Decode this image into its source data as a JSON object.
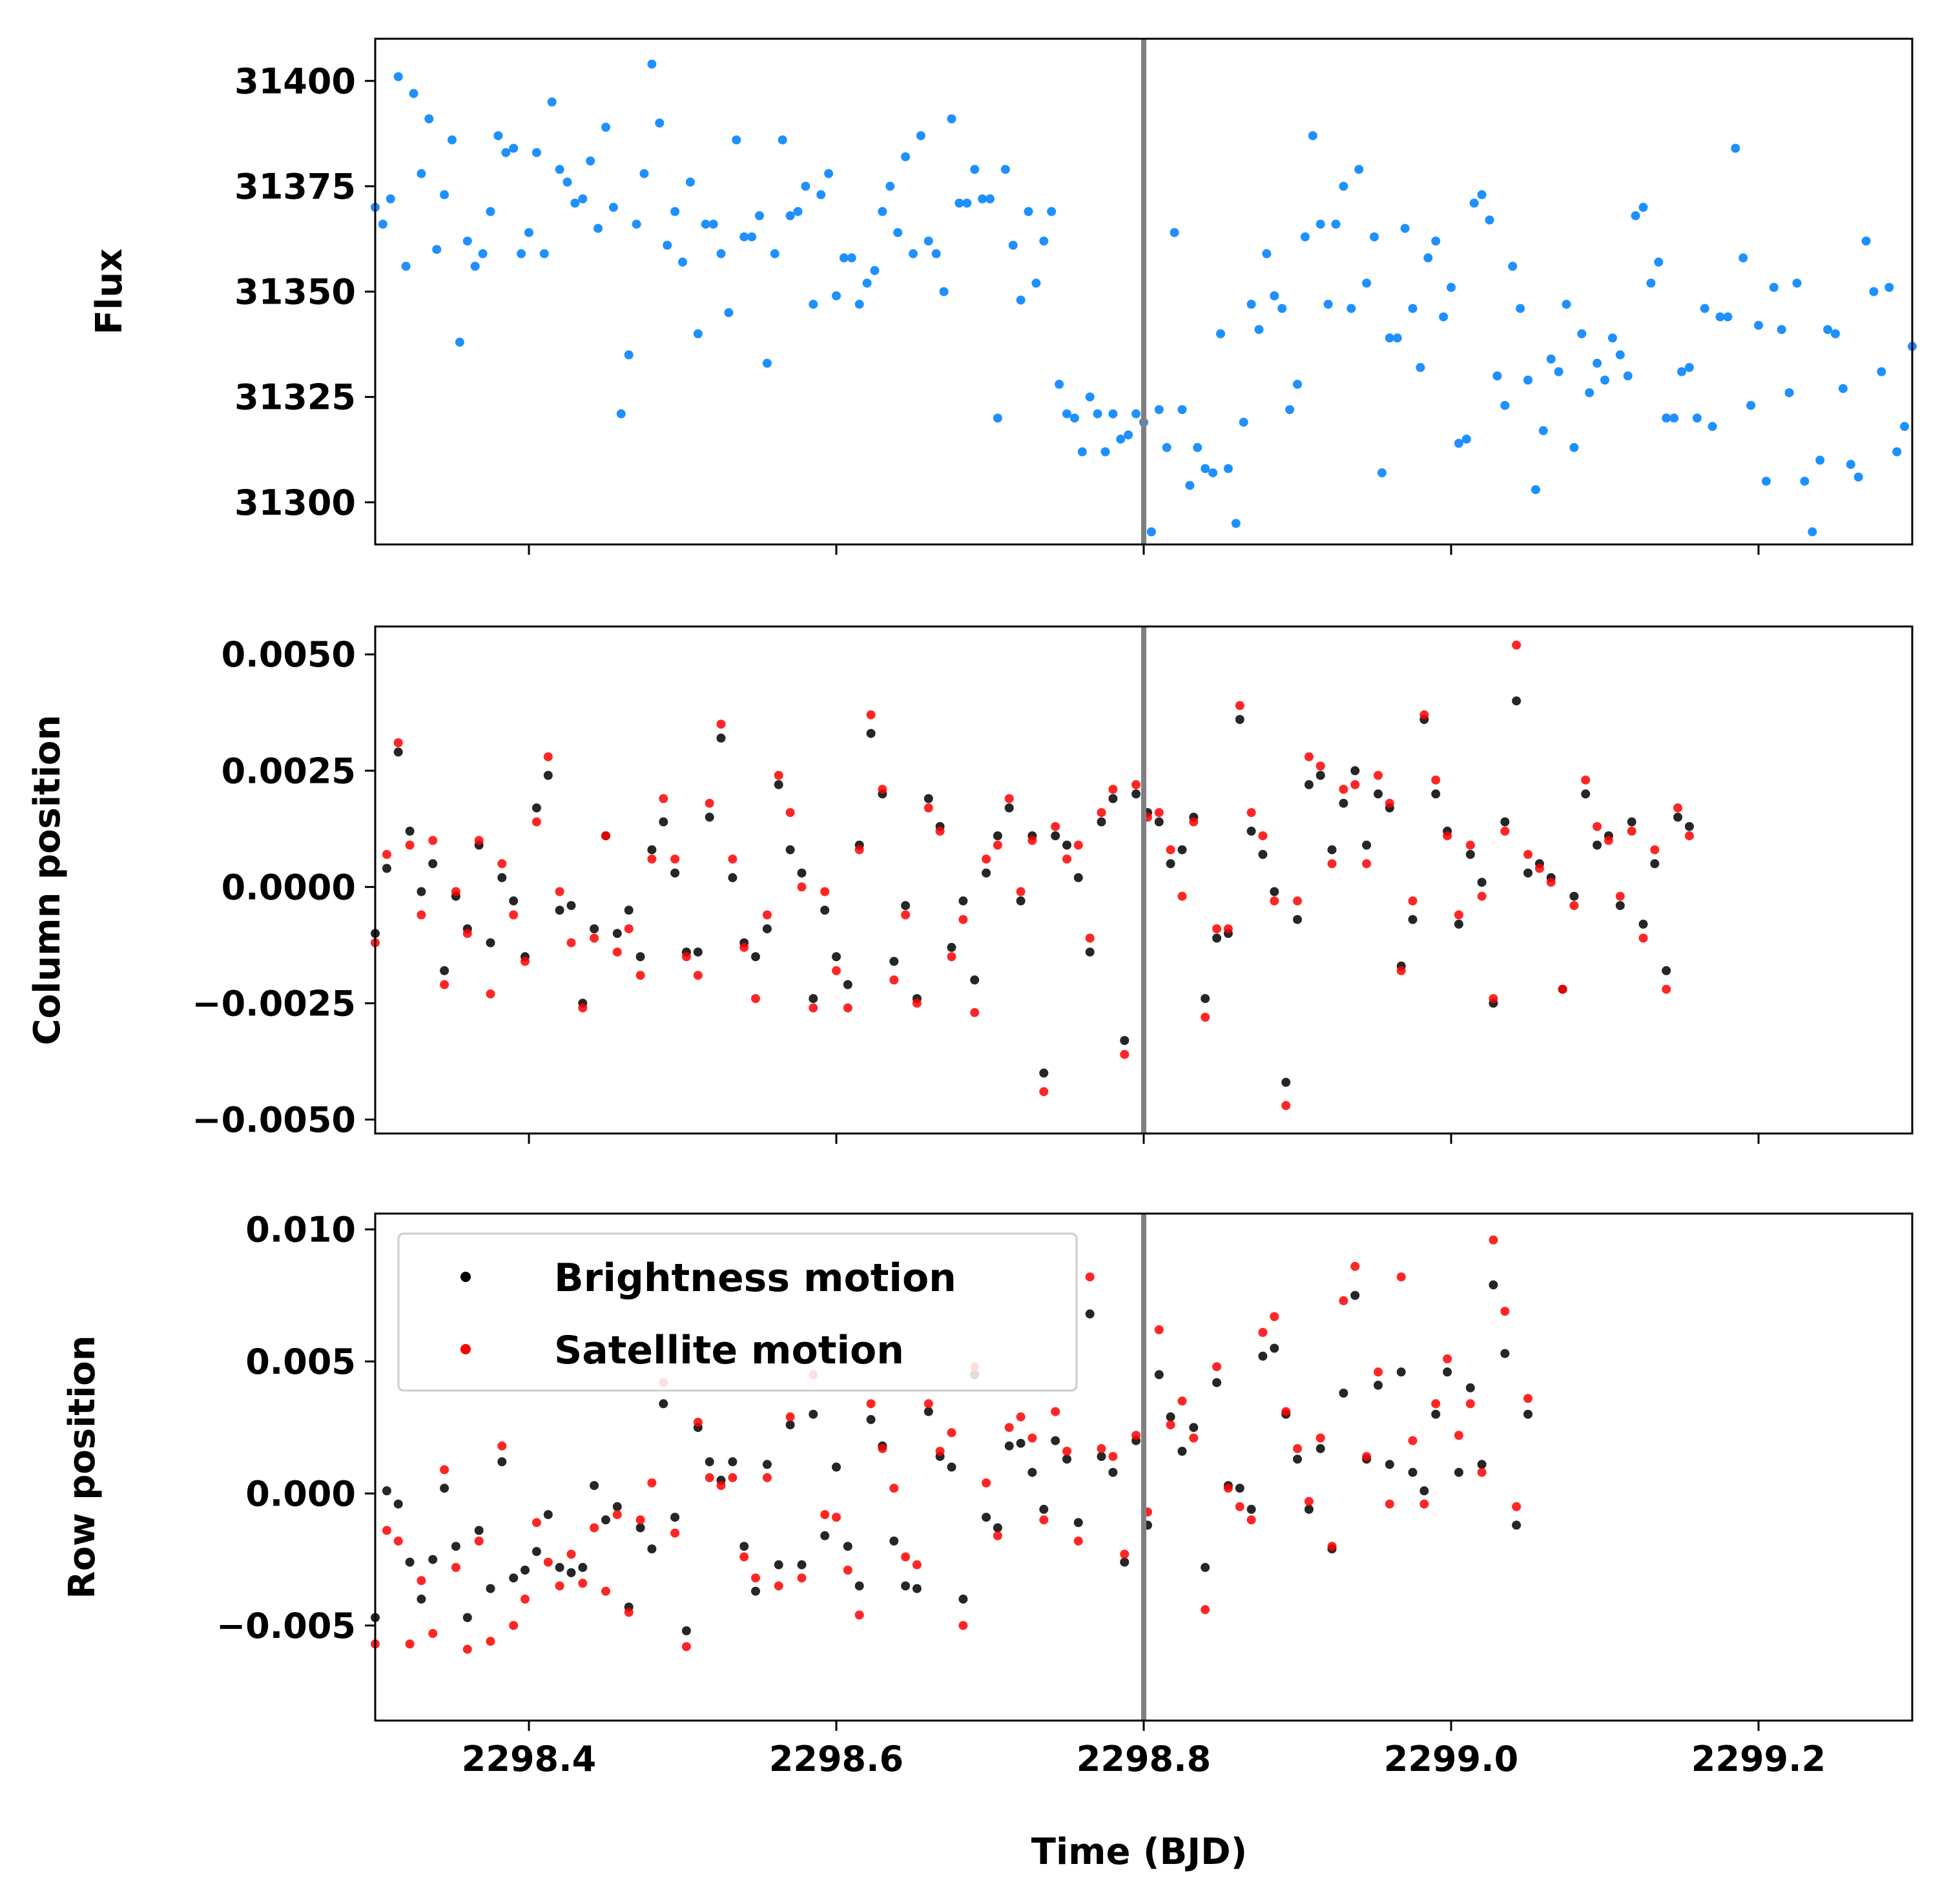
{
  "figure": {
    "xlabel": "Time (BJD)",
    "xlim": [
      2298.3,
      2299.3
    ],
    "x_ticks": [
      2298.4,
      2298.6,
      2298.8,
      2299.0,
      2299.2
    ],
    "x_tick_labels": [
      "2298.4",
      "2298.6",
      "2298.8",
      "2299.0",
      "2299.2"
    ],
    "vline_x": 2298.8,
    "vline_color": "#808080"
  },
  "chart_data": [
    {
      "type": "scatter",
      "ylabel": "Flux",
      "ylim": [
        31290,
        31410
      ],
      "y_ticks": [
        31300,
        31325,
        31350,
        31375,
        31400
      ],
      "y_tick_labels": [
        "31300",
        "31325",
        "31350",
        "31375",
        "31400"
      ],
      "legend": null,
      "series": [
        {
          "color": "#1E90FF",
          "x_start": 2298.3,
          "x_step": 0.005,
          "values": [
            31370,
            31366,
            31372,
            31401,
            31356,
            31397,
            31378,
            31391,
            31360,
            31373,
            31386,
            31338,
            31362,
            31356,
            31359,
            31369,
            31387,
            31383,
            31384,
            31359,
            31364,
            31383,
            31359,
            31395,
            31379,
            31376,
            31371,
            31372,
            31381,
            31365,
            31389,
            31370,
            31321,
            31335,
            31366,
            31378,
            31404,
            31390,
            31361,
            31369,
            31357,
            31376,
            31340,
            31366,
            31366,
            31359,
            31345,
            31386,
            31363,
            31363,
            31368,
            31333,
            31359,
            31386,
            31368,
            31369,
            31375,
            31347,
            31373,
            31378,
            31349,
            31358,
            31358,
            31347,
            31352,
            31355,
            31369,
            31375,
            31364,
            31382,
            31359,
            31387,
            31362,
            31359,
            31350,
            31391,
            31371,
            31371,
            31379,
            31372,
            31372,
            31320,
            31379,
            31361,
            31348,
            31369,
            31352,
            31362,
            31369,
            31328,
            31321,
            31320,
            31312,
            31325,
            31321,
            31312,
            31321,
            31315,
            31316,
            31321,
            31319,
            31293,
            31322,
            31313,
            31364,
            31322,
            31304,
            31313,
            31308,
            31307,
            31340,
            31308,
            31295,
            31319,
            31347,
            31341,
            31359,
            31349,
            31346,
            31322,
            31328,
            31363,
            31387,
            31366,
            31347,
            31366,
            31375,
            31346,
            31379,
            31352,
            31363,
            31307,
            31339,
            31339,
            31365,
            31346,
            31332,
            31358,
            31362,
            31344,
            31351,
            31314,
            31315,
            31371,
            31373,
            31367,
            31330,
            31323,
            31356,
            31346,
            31329,
            31303,
            31317,
            31334,
            31331,
            31347,
            31313,
            31340,
            31326,
            31333,
            31329,
            31339,
            31335,
            31330,
            31368,
            31370,
            31352,
            31357,
            31320,
            31320,
            31331,
            31332,
            31320,
            31346,
            31318,
            31344,
            31344,
            31384,
            31358,
            31323,
            31342,
            31305,
            31351,
            31341,
            31326,
            31352,
            31305,
            31293,
            31310,
            31341,
            31340,
            31327,
            31309,
            31306,
            31362,
            31350,
            31331,
            31351,
            31312,
            31318,
            31337,
            31343,
            31332,
            31353,
            31343,
            31333
          ]
        }
      ]
    },
    {
      "type": "scatter",
      "ylabel": "Column position",
      "ylim": [
        -0.0053,
        0.0056
      ],
      "y_ticks": [
        -0.005,
        -0.0025,
        0.0,
        0.0025,
        0.005
      ],
      "y_tick_labels": [
        "−0.0050",
        "−0.0025",
        "0.0000",
        "0.0025",
        "0.0050"
      ],
      "legend": null,
      "series": [
        {
          "color": "#000000",
          "x_start": 2298.3,
          "x_step": 0.0075,
          "values": [
            -0.001,
            0.0004,
            0.0029,
            0.0012,
            -0.0001,
            0.0005,
            -0.0018,
            -0.0002,
            -0.0009,
            0.0009,
            -0.0012,
            0.0002,
            -0.0003,
            -0.0015,
            0.0017,
            0.0024,
            -0.0005,
            -0.0004,
            -0.0025,
            -0.0009,
            0.0011,
            -0.001,
            -0.0005,
            -0.0015,
            0.0008,
            0.0014,
            0.0003,
            -0.0014,
            -0.0014,
            0.0015,
            0.0032,
            0.0002,
            -0.0012,
            -0.0015,
            -0.0009,
            0.0022,
            0.0008,
            0.0003,
            -0.0024,
            -0.0005,
            -0.0015,
            -0.0021,
            0.0009,
            0.0033,
            0.002,
            -0.0016,
            -0.0004,
            -0.0024,
            0.0019,
            0.0013,
            -0.0013,
            -0.0003,
            -0.002,
            0.0003,
            0.0011,
            0.0017,
            -0.0003,
            0.0011,
            -0.004,
            0.0011,
            0.0009,
            0.0002,
            -0.0014,
            0.0014,
            0.0019,
            -0.0033,
            0.002,
            0.0016,
            0.0014,
            0.0005,
            0.0008,
            0.0015,
            -0.0024,
            -0.0011,
            -0.001,
            0.0036,
            0.0012,
            0.0007,
            -0.0001,
            -0.0042,
            -0.0007,
            0.0022,
            0.0024,
            0.0008,
            0.0018,
            0.0025,
            0.0009,
            0.002,
            0.0017,
            -0.0017,
            -0.0007,
            0.0036,
            0.002,
            0.0012,
            -0.0008,
            0.0007,
            0.0001,
            -0.0025,
            0.0014,
            0.004,
            0.0003,
            0.0005,
            0.0002,
            -0.0022,
            -0.0002,
            0.002,
            0.0009,
            0.0011,
            -0.0004,
            0.0014,
            -0.0008,
            0.0005,
            -0.0018,
            0.0015,
            0.0013
          ]
        },
        {
          "color": "#FF0000",
          "x_start": 2298.3,
          "x_step": 0.0075,
          "values": [
            -0.0012,
            0.0007,
            0.0031,
            0.0009,
            -0.0006,
            0.001,
            -0.0021,
            -0.0001,
            -0.001,
            0.001,
            -0.0023,
            0.0005,
            -0.0006,
            -0.0016,
            0.0014,
            0.0028,
            -0.0001,
            -0.0012,
            -0.0026,
            -0.0011,
            0.0011,
            -0.0014,
            -0.0009,
            -0.0019,
            0.0006,
            0.0019,
            0.0006,
            -0.0015,
            -0.0019,
            0.0018,
            0.0035,
            0.0006,
            -0.0013,
            -0.0024,
            -0.0006,
            0.0024,
            0.0016,
            0.0,
            -0.0026,
            -0.0001,
            -0.0018,
            -0.0026,
            0.0008,
            0.0037,
            0.0021,
            -0.002,
            -0.0006,
            -0.0025,
            0.0017,
            0.0012,
            -0.0015,
            -0.0007,
            -0.0027,
            0.0006,
            0.0009,
            0.0019,
            -0.0001,
            0.001,
            -0.0044,
            0.0013,
            0.0006,
            0.0009,
            -0.0011,
            0.0016,
            0.0021,
            -0.0036,
            0.0022,
            0.0015,
            0.0016,
            0.0008,
            -0.0002,
            0.0014,
            -0.0028,
            -0.0009,
            -0.0009,
            0.0039,
            0.0016,
            0.0011,
            -0.0003,
            -0.0047,
            -0.0003,
            0.0028,
            0.0026,
            0.0005,
            0.0021,
            0.0022,
            0.0005,
            0.0024,
            0.0018,
            -0.0018,
            -0.0003,
            0.0037,
            0.0023,
            0.0011,
            -0.0006,
            0.0009,
            -0.0002,
            -0.0024,
            0.0012,
            0.0052,
            0.0007,
            0.0004,
            0.0001,
            -0.0022,
            -0.0004,
            0.0023,
            0.0013,
            0.001,
            -0.0002,
            0.0012,
            -0.0011,
            0.0008,
            -0.0022,
            0.0017,
            0.0011
          ]
        }
      ]
    },
    {
      "type": "scatter",
      "ylabel": "Row position",
      "ylim": [
        -0.0086,
        0.0106
      ],
      "y_ticks": [
        -0.005,
        0.0,
        0.005,
        0.01
      ],
      "y_tick_labels": [
        "−0.005",
        "0.000",
        "0.005",
        "0.010"
      ],
      "legend": {
        "position": "top-left",
        "entries": [
          {
            "label": "Brightness motion",
            "color": "#000000"
          },
          {
            "label": "Satellite motion",
            "color": "#FF0000"
          }
        ]
      },
      "series": [
        {
          "name": "Brightness motion",
          "color": "#000000",
          "x_start": 2298.3,
          "x_step": 0.0075,
          "values": [
            -0.0047,
            0.0001,
            -0.0004,
            -0.0026,
            -0.004,
            -0.0025,
            0.0002,
            -0.002,
            -0.0047,
            -0.0014,
            -0.0036,
            0.0012,
            -0.0032,
            -0.0029,
            -0.0022,
            -0.0008,
            -0.0028,
            -0.003,
            -0.0028,
            0.0003,
            -0.001,
            -0.0005,
            -0.0043,
            -0.0013,
            -0.0021,
            0.0034,
            -0.0009,
            -0.0052,
            0.0025,
            0.0012,
            0.0005,
            0.0012,
            -0.002,
            -0.0037,
            0.0011,
            -0.0027,
            0.0026,
            -0.0027,
            0.003,
            -0.0016,
            0.001,
            -0.002,
            -0.0035,
            0.0028,
            0.0018,
            -0.0018,
            -0.0035,
            -0.0036,
            0.0031,
            0.0014,
            0.001,
            -0.004,
            0.0045,
            -0.0009,
            -0.0013,
            0.0018,
            0.0019,
            0.0008,
            -0.0006,
            0.002,
            0.0013,
            -0.0011,
            0.0068,
            0.0014,
            0.0008,
            -0.0026,
            0.002,
            -0.0012,
            0.0045,
            0.0029,
            0.0016,
            0.0025,
            -0.0028,
            0.0042,
            0.0003,
            0.0002,
            -0.0006,
            0.0052,
            0.0055,
            0.003,
            0.0013,
            -0.0006,
            0.0017,
            -0.0021,
            0.0038,
            0.0075,
            0.0013,
            0.0041,
            0.0011,
            0.0046,
            0.0008,
            0.0001,
            0.003,
            0.0046,
            0.0008,
            0.004,
            0.0011,
            0.0079,
            0.0053,
            -0.0012,
            0.003
          ]
        },
        {
          "name": "Satellite motion",
          "color": "#FF0000",
          "x_start": 2298.3,
          "x_step": 0.0075,
          "values": [
            -0.0057,
            -0.0014,
            -0.0018,
            -0.0057,
            -0.0033,
            -0.0053,
            0.0009,
            -0.0028,
            -0.0059,
            -0.0018,
            -0.0056,
            0.0018,
            -0.005,
            -0.004,
            -0.0011,
            -0.0026,
            -0.0035,
            -0.0023,
            -0.0034,
            -0.0013,
            -0.0037,
            -0.0008,
            -0.0045,
            -0.001,
            0.0004,
            0.0042,
            -0.0015,
            -0.0058,
            0.0027,
            0.0006,
            0.0003,
            0.0006,
            -0.0024,
            -0.0032,
            0.0006,
            -0.0035,
            0.0029,
            -0.0032,
            0.0045,
            -0.0008,
            -0.0009,
            -0.0029,
            -0.0046,
            0.0034,
            0.0017,
            0.0002,
            -0.0024,
            -0.0027,
            0.0034,
            0.0016,
            0.0023,
            -0.005,
            0.0048,
            0.0004,
            -0.0016,
            0.0025,
            0.0029,
            0.0021,
            -0.001,
            0.0031,
            0.0016,
            -0.0018,
            0.0082,
            0.0017,
            0.0014,
            -0.0023,
            0.0022,
            -0.0007,
            0.0062,
            0.0026,
            0.0035,
            0.0021,
            -0.0044,
            0.0048,
            0.0002,
            -0.0005,
            -0.001,
            0.0061,
            0.0067,
            0.0031,
            0.0017,
            -0.0003,
            0.0021,
            -0.002,
            0.0073,
            0.0086,
            0.0014,
            0.0046,
            -0.0004,
            0.0082,
            0.002,
            -0.0004,
            0.0034,
            0.0051,
            0.0022,
            0.0034,
            0.0008,
            0.0096,
            0.0069,
            -0.0005,
            0.0036
          ]
        }
      ]
    }
  ]
}
